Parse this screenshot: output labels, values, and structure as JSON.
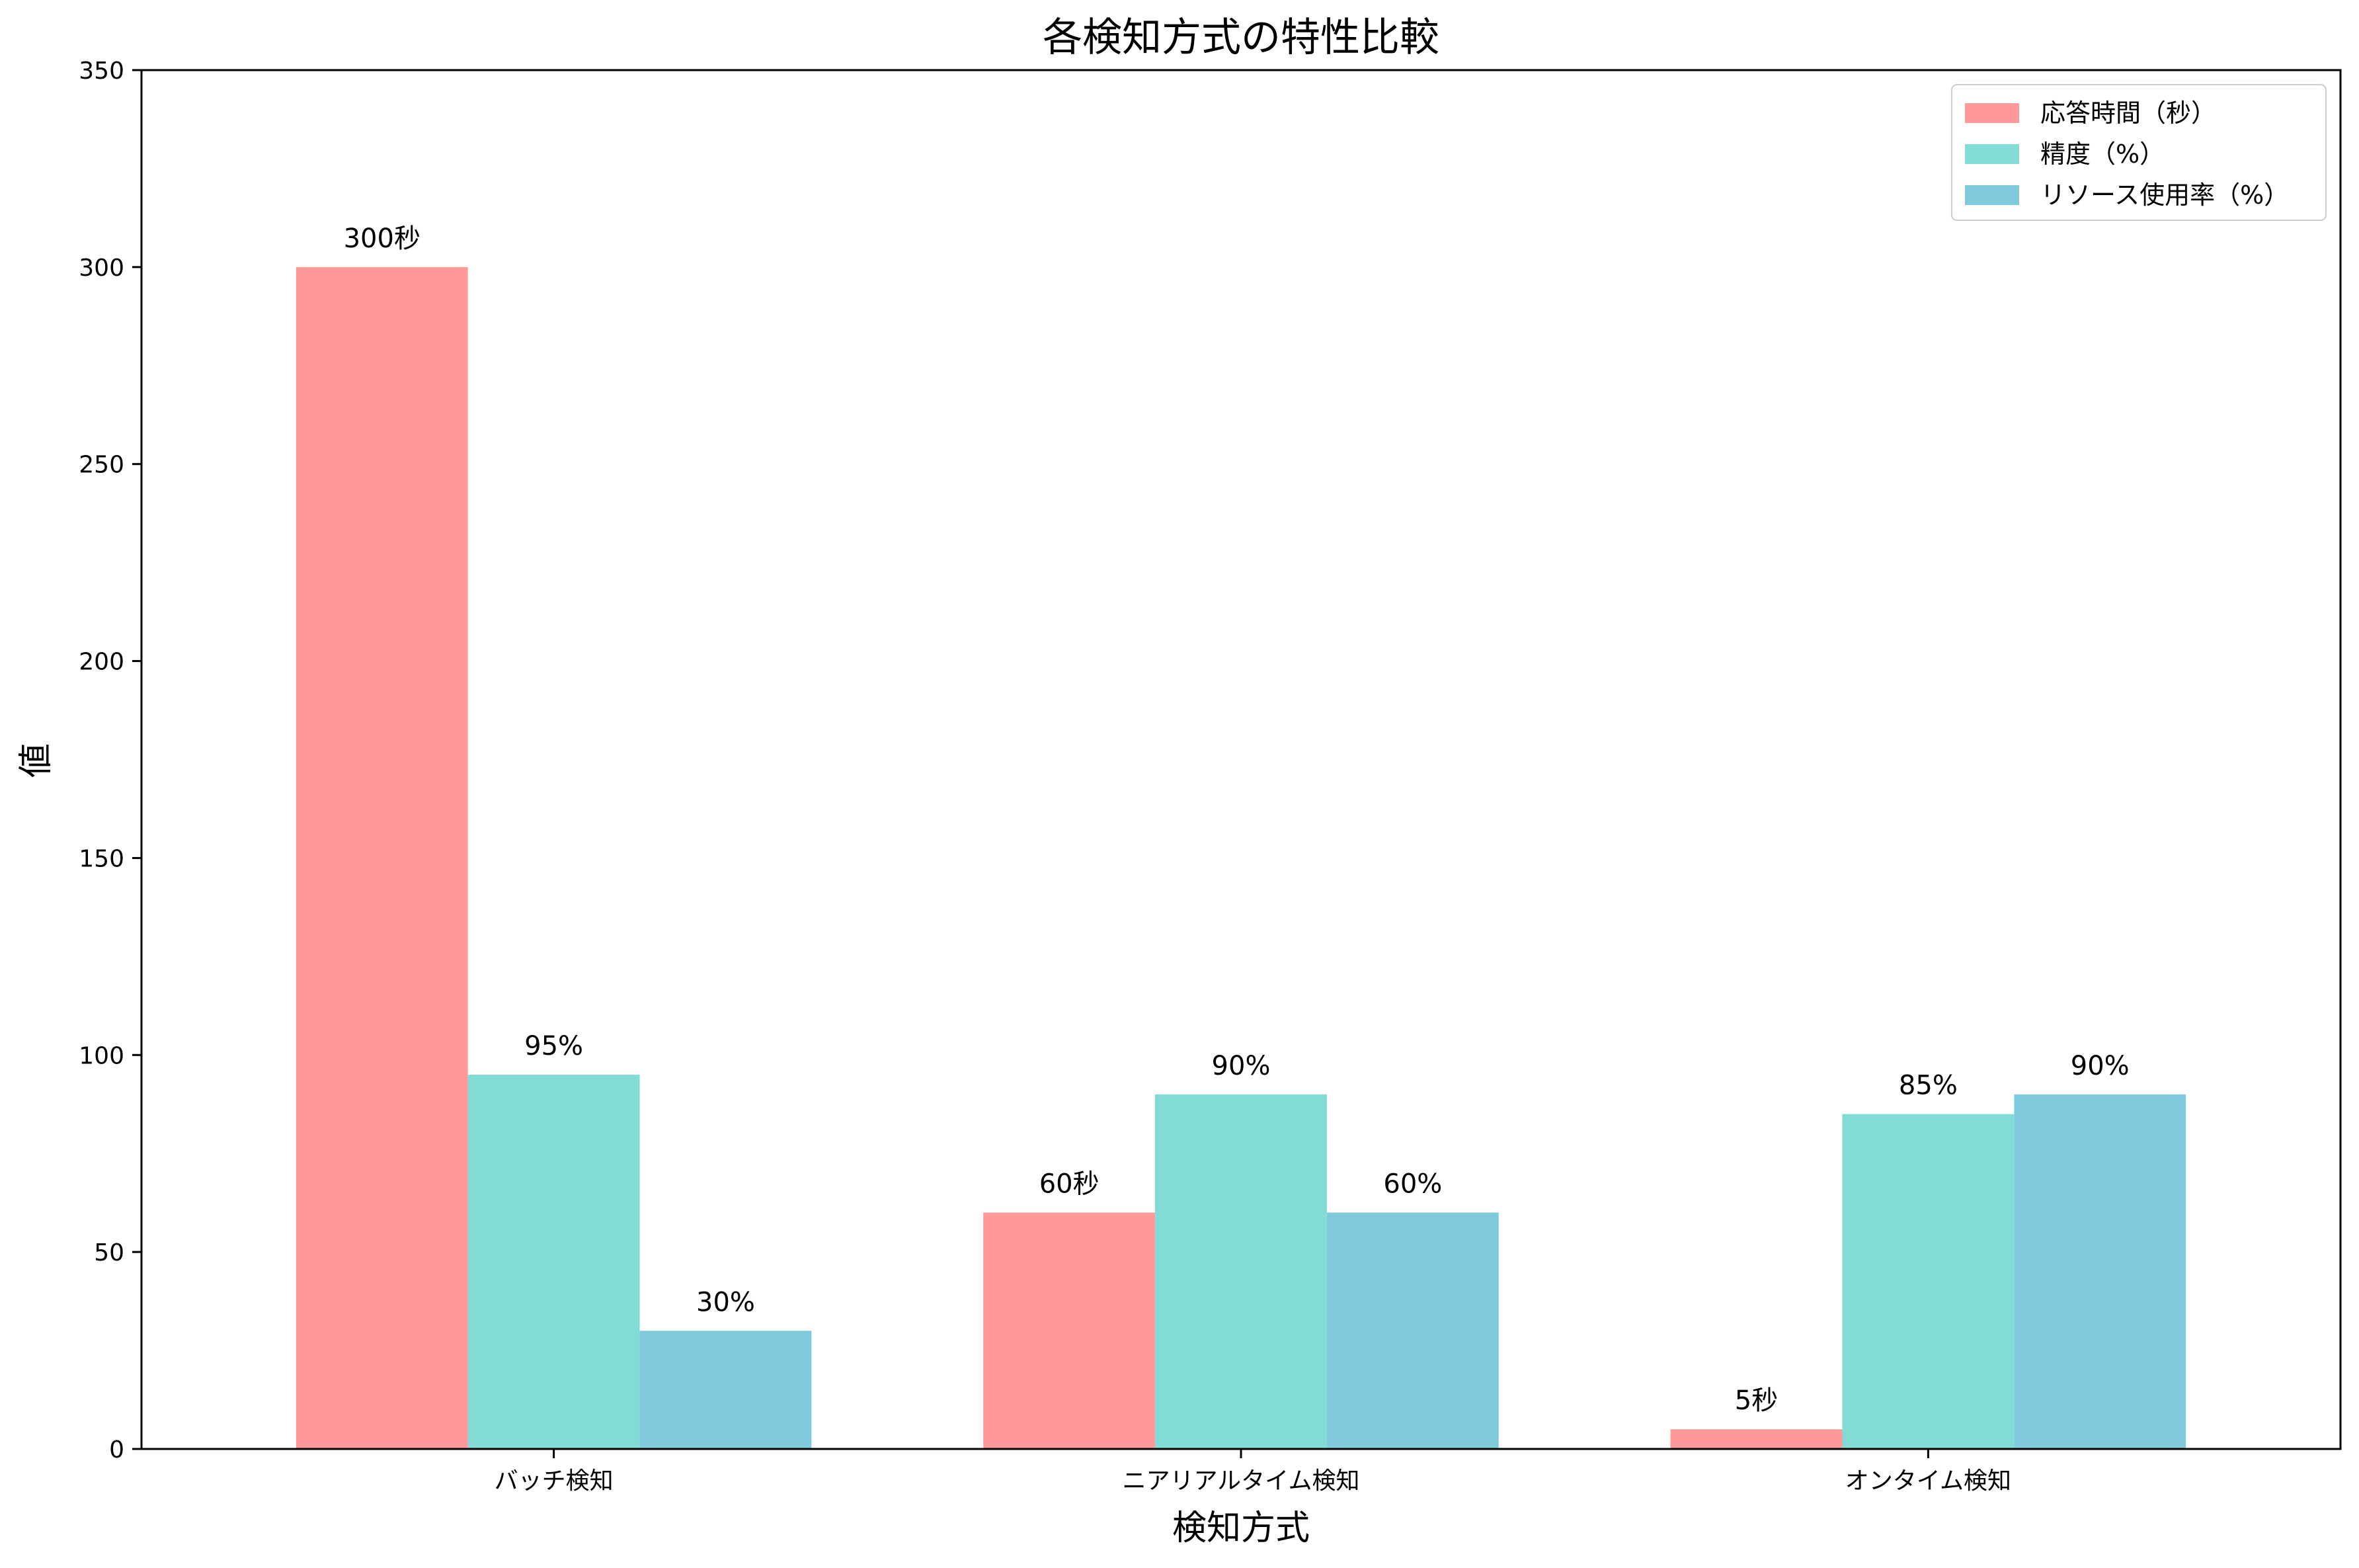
{
  "chart_data": {
    "type": "bar",
    "title": "各検知方式の特性比較",
    "xlabel": "検知方式",
    "ylabel": "値",
    "ylim": [
      0,
      350
    ],
    "yticks": [
      0,
      50,
      100,
      150,
      200,
      250,
      300,
      350
    ],
    "categories": [
      "バッチ検知",
      "ニアリアルタイム検知",
      "オンタイム検知"
    ],
    "series": [
      {
        "name": "応答時間（秒）",
        "color": "#ff9999",
        "values": [
          300,
          60,
          5
        ],
        "labels": [
          "300秒",
          "60秒",
          "5秒"
        ]
      },
      {
        "name": "精度（%）",
        "color": "#83dbd5",
        "values": [
          95,
          90,
          85
        ],
        "labels": [
          "95%",
          "90%",
          "85%"
        ]
      },
      {
        "name": "リソース使用率（%）",
        "color": "#7fcadd",
        "values": [
          30,
          60,
          90
        ],
        "labels": [
          "30%",
          "60%",
          "90%"
        ]
      }
    ],
    "legend_position": "top-right",
    "grid": false
  }
}
